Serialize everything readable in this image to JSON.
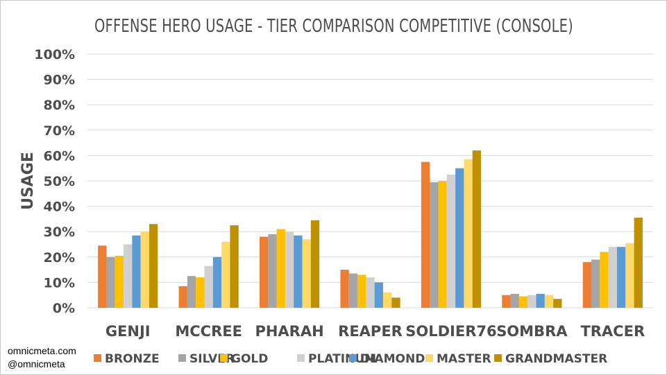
{
  "chart_data": {
    "type": "bar",
    "title": "OFFENSE HERO USAGE - TIER COMPARISON COMPETITIVE (CONSOLE)",
    "xlabel": "",
    "ylabel": "USAGE",
    "ylim": [
      0,
      100
    ],
    "yticks": [
      "0%",
      "10%",
      "20%",
      "30%",
      "40%",
      "50%",
      "60%",
      "70%",
      "80%",
      "90%",
      "100%"
    ],
    "grid": true,
    "legend_position": "bottom",
    "categories": [
      "GENJI",
      "MCCREE",
      "PHARAH",
      "REAPER",
      "SOLDIER76",
      "SOMBRA",
      "TRACER"
    ],
    "series": [
      {
        "name": "BRONZE",
        "color": "#ed7d31",
        "values": [
          24.5,
          8.5,
          28,
          15,
          57.5,
          5,
          18
        ]
      },
      {
        "name": "SILVER",
        "color": "#a5a5a5",
        "values": [
          20,
          12.5,
          29,
          13.5,
          49.5,
          5.5,
          19
        ]
      },
      {
        "name": "GOLD",
        "color": "#ffc000",
        "values": [
          20.5,
          12,
          31,
          13,
          50,
          4.5,
          22
        ]
      },
      {
        "name": "PLATINUM",
        "color": "#d0d0d0",
        "values": [
          25,
          16.5,
          30,
          12,
          52.5,
          5,
          24
        ]
      },
      {
        "name": "DIAMOND",
        "color": "#5b9bd5",
        "values": [
          28.5,
          20,
          28.5,
          10,
          55,
          5.5,
          24
        ]
      },
      {
        "name": "MASTER",
        "color": "#ffd966",
        "values": [
          30,
          26,
          27,
          6,
          58.5,
          5,
          25.5
        ]
      },
      {
        "name": "GRANDMASTER",
        "color": "#bf9000",
        "values": [
          33,
          32.5,
          34.5,
          4,
          62,
          3.5,
          35.5
        ]
      }
    ]
  },
  "watermark": {
    "line1": "omnicmeta.com",
    "line2": "@omnicmeta"
  }
}
